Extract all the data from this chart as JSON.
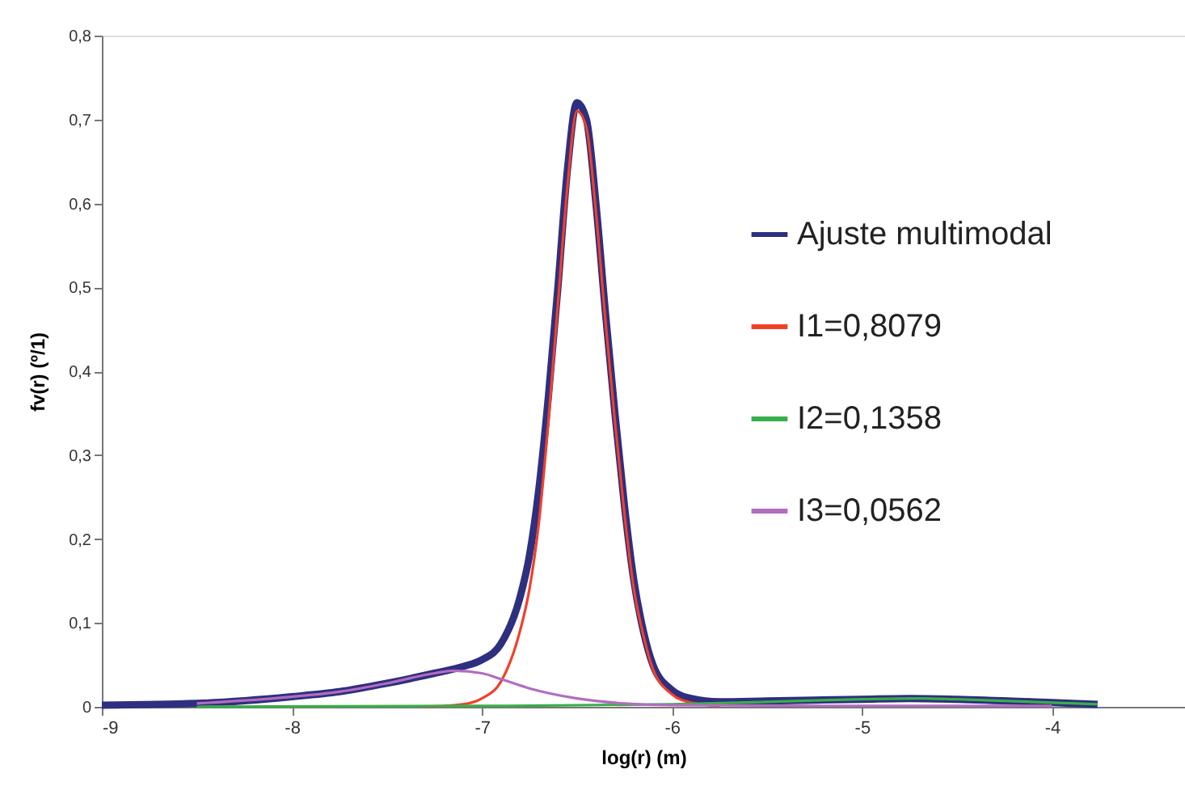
{
  "chart_data": {
    "type": "line",
    "xlabel": "log(r) (m)",
    "ylabel": "fv(r) (º/1)",
    "xlim": [
      -9,
      -3.3
    ],
    "xticks": [
      {
        "value": -9,
        "label": "-9"
      },
      {
        "value": -8,
        "label": "-8"
      },
      {
        "value": -7,
        "label": "-7"
      },
      {
        "value": -6,
        "label": "-6"
      },
      {
        "value": -5,
        "label": "-5"
      },
      {
        "value": -4,
        "label": "-4"
      }
    ],
    "ylim": [
      0,
      0.8
    ],
    "yticks": [
      {
        "value": 0,
        "label": "0"
      },
      {
        "value": 0.1,
        "label": "0,1"
      },
      {
        "value": 0.2,
        "label": "0,2"
      },
      {
        "value": 0.3,
        "label": "0,3"
      },
      {
        "value": 0.4,
        "label": "0,4"
      },
      {
        "value": 0.5,
        "label": "0,5"
      },
      {
        "value": 0.6,
        "label": "0,6"
      },
      {
        "value": 0.7,
        "label": "0,7"
      },
      {
        "value": 0.8,
        "label": "0,8"
      }
    ],
    "grid": false,
    "legend": "right",
    "marker": "none",
    "line_style": "solid",
    "series": [
      {
        "name": "Ajuste multimodal",
        "color": "#2e2f7f",
        "x": [
          -9,
          -8.5,
          -8,
          -7.75,
          -7.5,
          -7.25,
          -7.1,
          -7.0,
          -6.9,
          -6.8,
          -6.75,
          -6.7,
          -6.65,
          -6.6,
          -6.55,
          -6.5,
          -6.45,
          -6.4,
          -6.35,
          -6.3,
          -6.25,
          -6.2,
          -6.15,
          -6.1,
          -6.0,
          -5.9,
          -5.75,
          -5.5,
          -5,
          -4.75,
          -4.5,
          -4,
          -3.76
        ],
        "values": [
          0.002,
          0.004,
          0.012,
          0.018,
          0.028,
          0.04,
          0.048,
          0.056,
          0.075,
          0.13,
          0.18,
          0.26,
          0.37,
          0.5,
          0.64,
          0.72,
          0.7,
          0.6,
          0.47,
          0.35,
          0.24,
          0.15,
          0.09,
          0.05,
          0.02,
          0.01,
          0.006,
          0.007,
          0.009,
          0.01,
          0.009,
          0.005,
          0.003
        ]
      },
      {
        "name": "I1=0,8079",
        "color": "#f0402a",
        "x": [
          -7.3,
          -7.1,
          -7.0,
          -6.9,
          -6.8,
          -6.75,
          -6.7,
          -6.65,
          -6.6,
          -6.55,
          -6.5,
          -6.45,
          -6.4,
          -6.35,
          -6.3,
          -6.25,
          -6.2,
          -6.15,
          -6.1,
          -6.0,
          -5.9,
          -5.75
        ],
        "values": [
          0,
          0.003,
          0.01,
          0.03,
          0.09,
          0.14,
          0.22,
          0.34,
          0.48,
          0.62,
          0.71,
          0.69,
          0.59,
          0.46,
          0.34,
          0.23,
          0.14,
          0.085,
          0.045,
          0.015,
          0.005,
          0.001
        ]
      },
      {
        "name": "I2=0,1358",
        "color": "#3aae4a",
        "x": [
          -8.5,
          -7,
          -6,
          -5.5,
          -5,
          -4.7,
          -4.5,
          -4,
          -3.76
        ],
        "values": [
          0,
          0.001,
          0.003,
          0.006,
          0.009,
          0.01,
          0.009,
          0.005,
          0.003
        ]
      },
      {
        "name": "I3=0,0562",
        "color": "#b26cc0",
        "x": [
          -8.5,
          -8,
          -7.75,
          -7.5,
          -7.25,
          -7.15,
          -7,
          -6.9,
          -6.75,
          -6.5,
          -6.25,
          -6,
          -5,
          -4
        ],
        "values": [
          0.004,
          0.012,
          0.018,
          0.028,
          0.04,
          0.043,
          0.04,
          0.033,
          0.022,
          0.01,
          0.004,
          0.002,
          0.001,
          0.001
        ]
      }
    ]
  }
}
